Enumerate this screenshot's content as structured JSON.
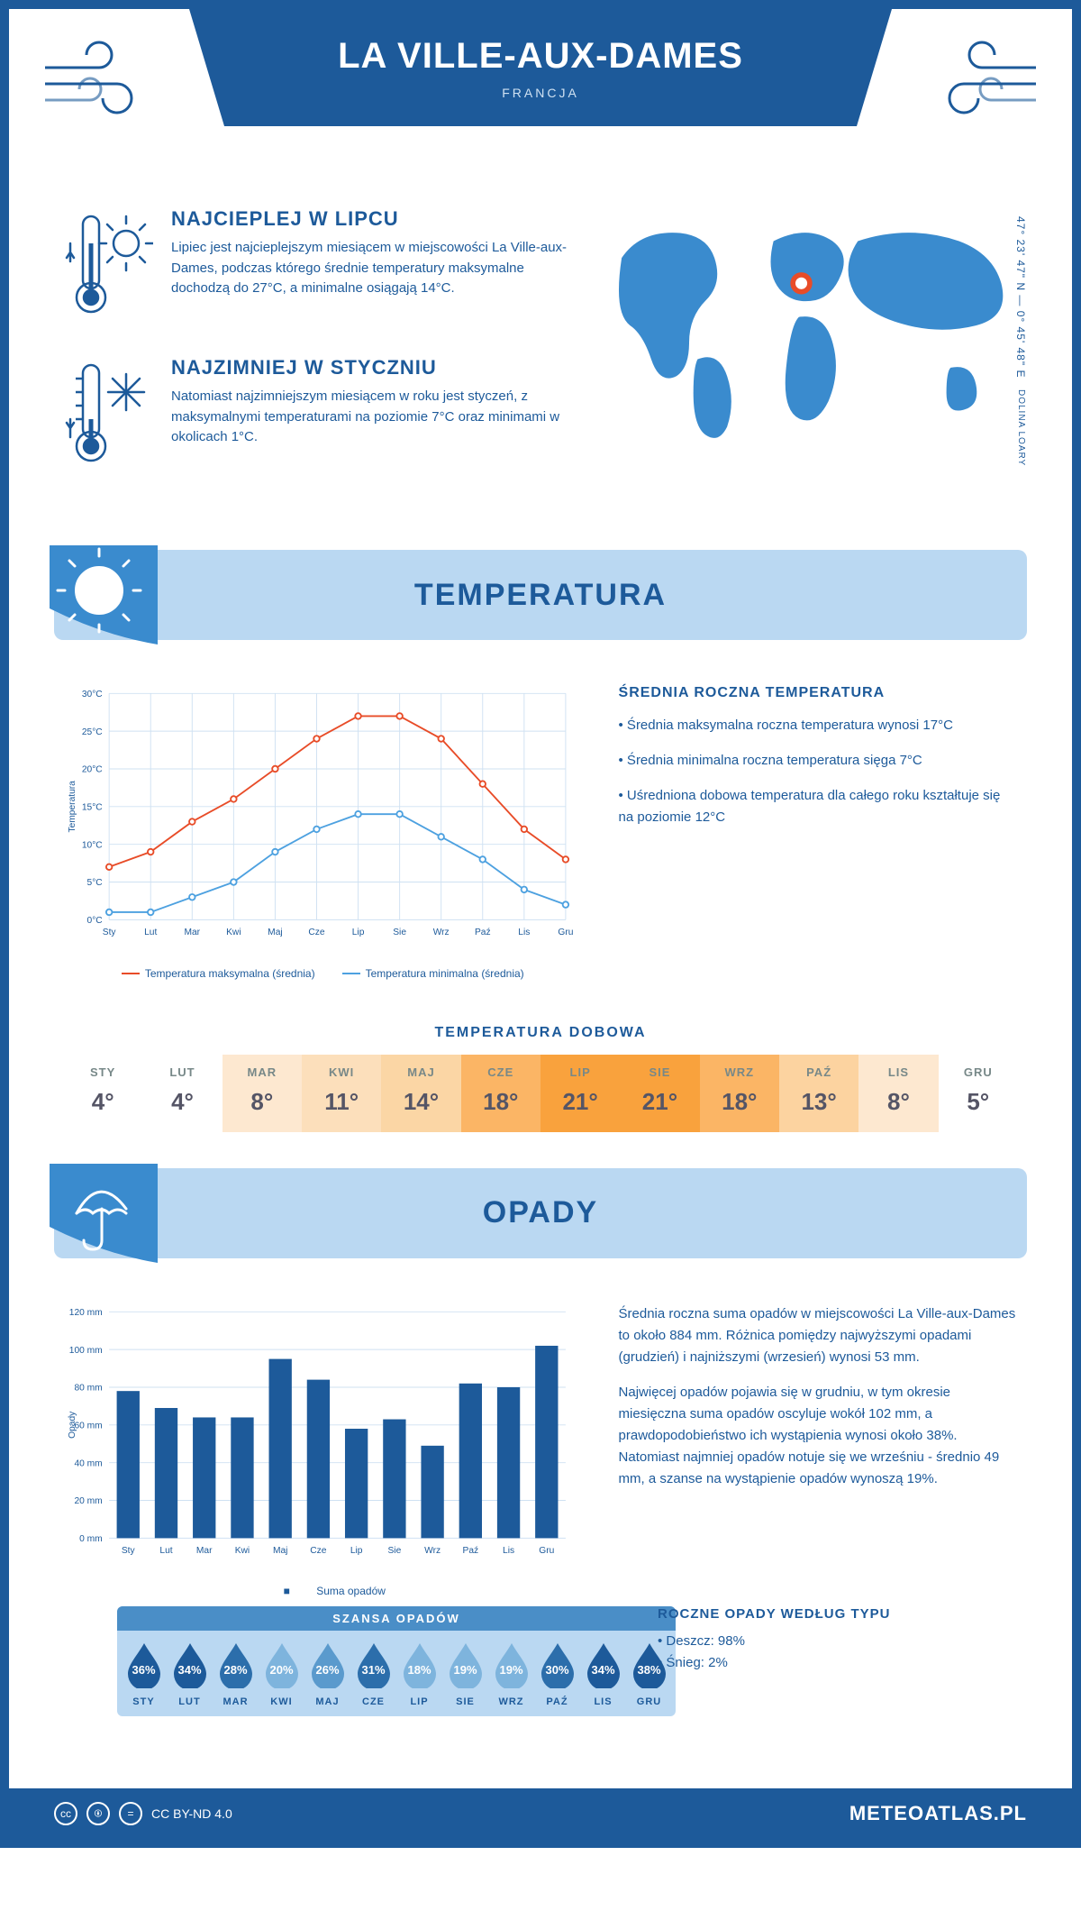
{
  "header": {
    "title": "LA VILLE-AUX-DAMES",
    "country": "FRANCJA"
  },
  "coords": {
    "lat": "47° 23' 47\" N — 0° 45' 48\" E",
    "region": "DOLINA LOARY"
  },
  "hot": {
    "title": "NAJCIEPLEJ W LIPCU",
    "body": "Lipiec jest najcieplejszym miesiącem w miejscowości La Ville-aux-Dames, podczas którego średnie temperatury maksymalne dochodzą do 27°C, a minimalne osiągają 14°C."
  },
  "cold": {
    "title": "NAJZIMNIEJ W STYCZNIU",
    "body": "Natomiast najzimniejszym miesiącem w roku jest styczeń, z maksymalnymi temperaturami na poziomie 7°C oraz minimami w okolicach 1°C."
  },
  "temp_section": {
    "title": "TEMPERATURA"
  },
  "temp_chart": {
    "months": [
      "Sty",
      "Lut",
      "Mar",
      "Kwi",
      "Maj",
      "Cze",
      "Lip",
      "Sie",
      "Wrz",
      "Paź",
      "Lis",
      "Gru"
    ],
    "max": [
      7,
      9,
      13,
      16,
      20,
      24,
      27,
      27,
      24,
      18,
      12,
      8
    ],
    "min": [
      1,
      1,
      3,
      5,
      9,
      12,
      14,
      14,
      11,
      8,
      4,
      2
    ],
    "ylim": [
      0,
      30
    ],
    "ytick_step": 5,
    "ylabel": "Temperatura",
    "max_color": "#e84c28",
    "min_color": "#4da1e0",
    "grid_color": "#cfe1f2",
    "legend_max": "Temperatura maksymalna (średnia)",
    "legend_min": "Temperatura minimalna (średnia)"
  },
  "temp_side": {
    "heading": "ŚREDNIA ROCZNA TEMPERATURA",
    "b1": "• Średnia maksymalna roczna temperatura wynosi 17°C",
    "b2": "• Średnia minimalna roczna temperatura sięga 7°C",
    "b3": "• Uśredniona dobowa temperatura dla całego roku kształtuje się na poziomie 12°C"
  },
  "daily": {
    "title": "TEMPERATURA DOBOWA",
    "months": [
      "STY",
      "LUT",
      "MAR",
      "KWI",
      "MAJ",
      "CZE",
      "LIP",
      "SIE",
      "WRZ",
      "PAŹ",
      "LIS",
      "GRU"
    ],
    "values": [
      "4°",
      "4°",
      "8°",
      "11°",
      "14°",
      "18°",
      "21°",
      "21°",
      "18°",
      "13°",
      "8°",
      "5°"
    ],
    "colors": [
      "#ffffff",
      "#ffffff",
      "#fde8d0",
      "#fcdfbb",
      "#fbd6a5",
      "#fbb565",
      "#f9a23d",
      "#f9a23d",
      "#fbb565",
      "#fcd3a0",
      "#fde8d0",
      "#ffffff"
    ]
  },
  "precip_section": {
    "title": "OPADY"
  },
  "precip_chart": {
    "months": [
      "Sty",
      "Lut",
      "Mar",
      "Kwi",
      "Maj",
      "Cze",
      "Lip",
      "Sie",
      "Wrz",
      "Paź",
      "Lis",
      "Gru"
    ],
    "values": [
      78,
      69,
      64,
      64,
      95,
      84,
      58,
      63,
      49,
      82,
      80,
      102
    ],
    "ylim": [
      0,
      120
    ],
    "ytick_step": 20,
    "ylabel": "Opady",
    "bar_color": "#1d5a9a",
    "grid_color": "#cfe1f2",
    "legend": "Suma opadów"
  },
  "precip_side": {
    "p1": "Średnia roczna suma opadów w miejscowości La Ville-aux-Dames to około 884 mm. Różnica pomiędzy najwyższymi opadami (grudzień) i najniższymi (wrzesień) wynosi 53 mm.",
    "p2": "Najwięcej opadów pojawia się w grudniu, w tym okresie miesięczna suma opadów oscyluje wokół 102 mm, a prawdopodobieństwo ich wystąpienia wynosi około 38%. Natomiast najmniej opadów notuje się we wrześniu - średnio 49 mm, a szanse na wystąpienie opadów wynoszą 19%."
  },
  "chance": {
    "title": "SZANSA OPADÓW",
    "months": [
      "STY",
      "LUT",
      "MAR",
      "KWI",
      "MAJ",
      "CZE",
      "LIP",
      "SIE",
      "WRZ",
      "PAŹ",
      "LIS",
      "GRU"
    ],
    "pct": [
      "36%",
      "34%",
      "28%",
      "20%",
      "26%",
      "31%",
      "18%",
      "19%",
      "19%",
      "30%",
      "34%",
      "38%"
    ],
    "colors": [
      "#1d5a9a",
      "#1d5a9a",
      "#2c6eab",
      "#7eb4dd",
      "#5a9acd",
      "#2c6eab",
      "#7eb4dd",
      "#7eb4dd",
      "#7eb4dd",
      "#2c6eab",
      "#1d5a9a",
      "#1d5a9a"
    ]
  },
  "precip_type": {
    "heading": "ROCZNE OPADY WEDŁUG TYPU",
    "rain": "• Deszcz: 98%",
    "snow": "• Śnieg: 2%"
  },
  "footer": {
    "license": "CC BY-ND 4.0",
    "site": "METEOATLAS.PL"
  },
  "brand_blue": "#1d5a9a",
  "light_blue": "#bad8f2"
}
